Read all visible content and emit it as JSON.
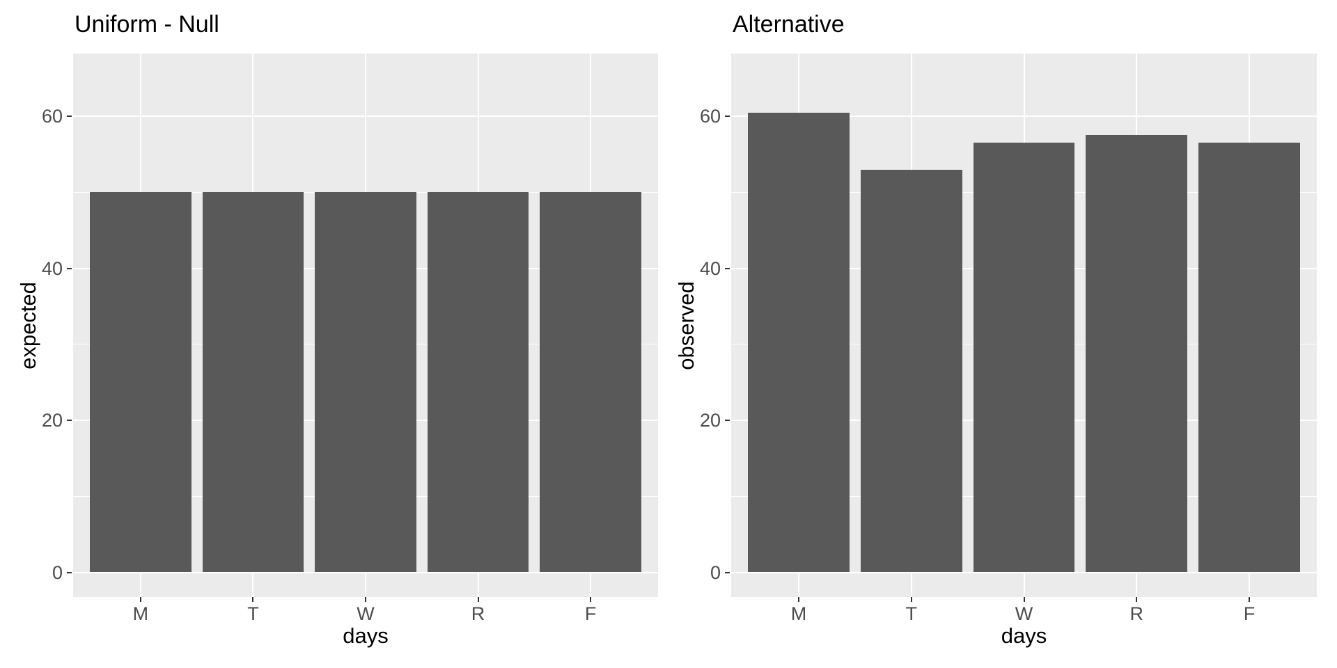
{
  "figure": {
    "background_color": "#FFFFFF"
  },
  "colors": {
    "bar_fill": "#595959",
    "panel_background": "#EBEBEB",
    "gridline": "#FFFFFF",
    "tick_label": "#4D4D4D",
    "tick_mark": "#333333",
    "title_text": "#000000",
    "axis_title_text": "#000000"
  },
  "chart_data": [
    {
      "type": "bar",
      "title": "Uniform - Null",
      "xlabel": "days",
      "ylabel": "expected",
      "categories": [
        "M",
        "T",
        "W",
        "R",
        "F"
      ],
      "values": [
        50,
        50,
        50,
        50,
        50
      ],
      "y_ticks": [
        0,
        20,
        40,
        60
      ],
      "y_minor_gridlines": [
        10,
        30,
        50
      ],
      "ylim": [
        -3.25,
        68.25
      ],
      "grid": "major-and-minor",
      "legend_position": "none"
    },
    {
      "type": "bar",
      "title": "Alternative",
      "xlabel": "days",
      "ylabel": "observed",
      "categories": [
        "M",
        "T",
        "W",
        "R",
        "F"
      ],
      "values": [
        60.5,
        53,
        56.5,
        57.5,
        56.5
      ],
      "y_ticks": [
        0,
        20,
        40,
        60
      ],
      "y_minor_gridlines": [
        10,
        30,
        50
      ],
      "ylim": [
        -3.25,
        68.25
      ],
      "grid": "major-and-minor",
      "legend_position": "none"
    }
  ]
}
